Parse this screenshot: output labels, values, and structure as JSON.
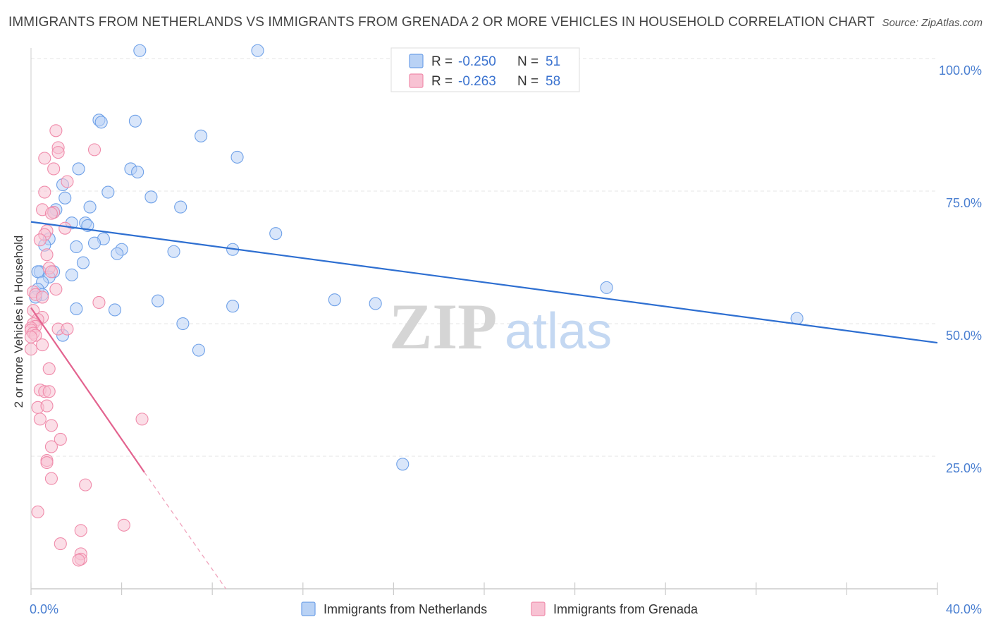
{
  "title": "IMMIGRANTS FROM NETHERLANDS VS IMMIGRANTS FROM GRENADA 2 OR MORE VEHICLES IN HOUSEHOLD CORRELATION CHART",
  "source": "Source: ZipAtlas.com",
  "watermark": {
    "zip": "ZIP",
    "atlas": "atlas"
  },
  "legend_top": [
    {
      "r_label": "R = ",
      "r_value": "-0.250",
      "n_label": "N = ",
      "n_value": "51",
      "color": "#6fa1e8"
    },
    {
      "r_label": "R = ",
      "r_value": "-0.263",
      "n_label": "N = ",
      "n_value": "58",
      "color": "#f08cab"
    }
  ],
  "chart_data": {
    "type": "scatter",
    "title": "IMMIGRANTS FROM NETHERLANDS VS IMMIGRANTS FROM GRENADA 2 OR MORE VEHICLES IN HOUSEHOLD CORRELATION CHART",
    "xlabel": "",
    "ylabel": "2 or more Vehicles in Household",
    "xlim": [
      0,
      40
    ],
    "ylim": [
      0,
      102
    ],
    "x_tick_labels": [
      "0.0%",
      "40.0%"
    ],
    "y_ticks": [
      25,
      50,
      75,
      100
    ],
    "y_tick_labels": [
      "25.0%",
      "50.0%",
      "75.0%",
      "100.0%"
    ],
    "grid": true,
    "legend_position": "bottom-center",
    "series": [
      {
        "name": "Immigrants from Netherlands",
        "color": "#6fa1e8",
        "fill": "#b9d2f5",
        "trend": {
          "x0": 0,
          "y0": 69.2,
          "x1": 40,
          "y1": 46.4
        },
        "points": [
          [
            4.8,
            101.5
          ],
          [
            10.0,
            101.5
          ],
          [
            3.0,
            88.4
          ],
          [
            3.1,
            88.0
          ],
          [
            4.6,
            88.2
          ],
          [
            7.5,
            85.4
          ],
          [
            9.1,
            81.4
          ],
          [
            2.1,
            79.2
          ],
          [
            4.4,
            79.2
          ],
          [
            4.7,
            78.6
          ],
          [
            1.4,
            76.2
          ],
          [
            3.4,
            74.8
          ],
          [
            5.3,
            73.9
          ],
          [
            1.5,
            73.7
          ],
          [
            1.1,
            71.5
          ],
          [
            1.0,
            71.0
          ],
          [
            2.6,
            72.0
          ],
          [
            6.6,
            72.0
          ],
          [
            1.8,
            69.0
          ],
          [
            2.4,
            69.0
          ],
          [
            2.5,
            68.5
          ],
          [
            10.8,
            67.0
          ],
          [
            3.2,
            66.0
          ],
          [
            0.8,
            66.0
          ],
          [
            2.8,
            65.2
          ],
          [
            0.6,
            64.8
          ],
          [
            2.0,
            64.5
          ],
          [
            4.0,
            64.0
          ],
          [
            8.9,
            64.0
          ],
          [
            3.8,
            63.2
          ],
          [
            6.3,
            63.6
          ],
          [
            2.3,
            61.5
          ],
          [
            0.4,
            59.8
          ],
          [
            1.0,
            59.8
          ],
          [
            0.3,
            59.8
          ],
          [
            1.8,
            59.2
          ],
          [
            0.8,
            58.8
          ],
          [
            0.5,
            57.8
          ],
          [
            25.4,
            56.8
          ],
          [
            0.3,
            56.5
          ],
          [
            0.5,
            55.5
          ],
          [
            0.2,
            55.0
          ],
          [
            13.4,
            54.5
          ],
          [
            5.6,
            54.3
          ],
          [
            15.2,
            53.8
          ],
          [
            8.9,
            53.3
          ],
          [
            2.0,
            52.8
          ],
          [
            3.7,
            52.6
          ],
          [
            6.7,
            50.0
          ],
          [
            33.8,
            51.0
          ],
          [
            1.4,
            47.8
          ],
          [
            7.4,
            45.0
          ],
          [
            16.4,
            23.5
          ]
        ]
      },
      {
        "name": "Immigrants from Grenada",
        "color": "#f08cab",
        "fill": "#f8c2d3",
        "trend": {
          "x0": 0,
          "y0": 53.0,
          "x1": 5.0,
          "y1": 22.0
        },
        "trend_dashed": {
          "x0": 5.0,
          "y0": 22.0,
          "x1": 8.6,
          "y1": 0
        },
        "points": [
          [
            1.1,
            86.4
          ],
          [
            1.2,
            83.2
          ],
          [
            2.8,
            82.8
          ],
          [
            1.2,
            82.3
          ],
          [
            0.6,
            81.2
          ],
          [
            1.0,
            79.2
          ],
          [
            1.6,
            76.8
          ],
          [
            0.6,
            74.8
          ],
          [
            0.5,
            71.5
          ],
          [
            1.0,
            71.0
          ],
          [
            0.9,
            70.8
          ],
          [
            1.5,
            68.0
          ],
          [
            0.7,
            67.5
          ],
          [
            0.6,
            66.8
          ],
          [
            0.4,
            65.8
          ],
          [
            0.7,
            63.0
          ],
          [
            0.8,
            60.5
          ],
          [
            0.9,
            59.8
          ],
          [
            1.1,
            56.5
          ],
          [
            0.1,
            56.0
          ],
          [
            0.2,
            55.5
          ],
          [
            0.5,
            55.0
          ],
          [
            3.0,
            54.0
          ],
          [
            0.1,
            52.5
          ],
          [
            0.5,
            51.2
          ],
          [
            0.3,
            50.8
          ],
          [
            0.1,
            50.0
          ],
          [
            0.2,
            49.5
          ],
          [
            0.0,
            49.2
          ],
          [
            0.0,
            48.8
          ],
          [
            1.2,
            49.0
          ],
          [
            1.6,
            49.0
          ],
          [
            0.1,
            48.2
          ],
          [
            0.2,
            47.8
          ],
          [
            0.0,
            47.5
          ],
          [
            0.5,
            46.0
          ],
          [
            0.0,
            45.2
          ],
          [
            0.8,
            41.5
          ],
          [
            0.4,
            37.5
          ],
          [
            0.6,
            37.2
          ],
          [
            0.8,
            37.2
          ],
          [
            0.3,
            34.2
          ],
          [
            0.7,
            34.5
          ],
          [
            4.9,
            32.0
          ],
          [
            0.4,
            32.0
          ],
          [
            0.9,
            30.8
          ],
          [
            1.3,
            28.2
          ],
          [
            0.9,
            26.8
          ],
          [
            0.7,
            24.2
          ],
          [
            0.7,
            23.8
          ],
          [
            0.9,
            20.8
          ],
          [
            2.4,
            19.6
          ],
          [
            0.3,
            14.5
          ],
          [
            4.1,
            12.0
          ],
          [
            2.2,
            11.0
          ],
          [
            1.3,
            8.5
          ],
          [
            2.2,
            6.6
          ],
          [
            2.2,
            5.6
          ],
          [
            2.1,
            5.4
          ]
        ]
      }
    ]
  }
}
